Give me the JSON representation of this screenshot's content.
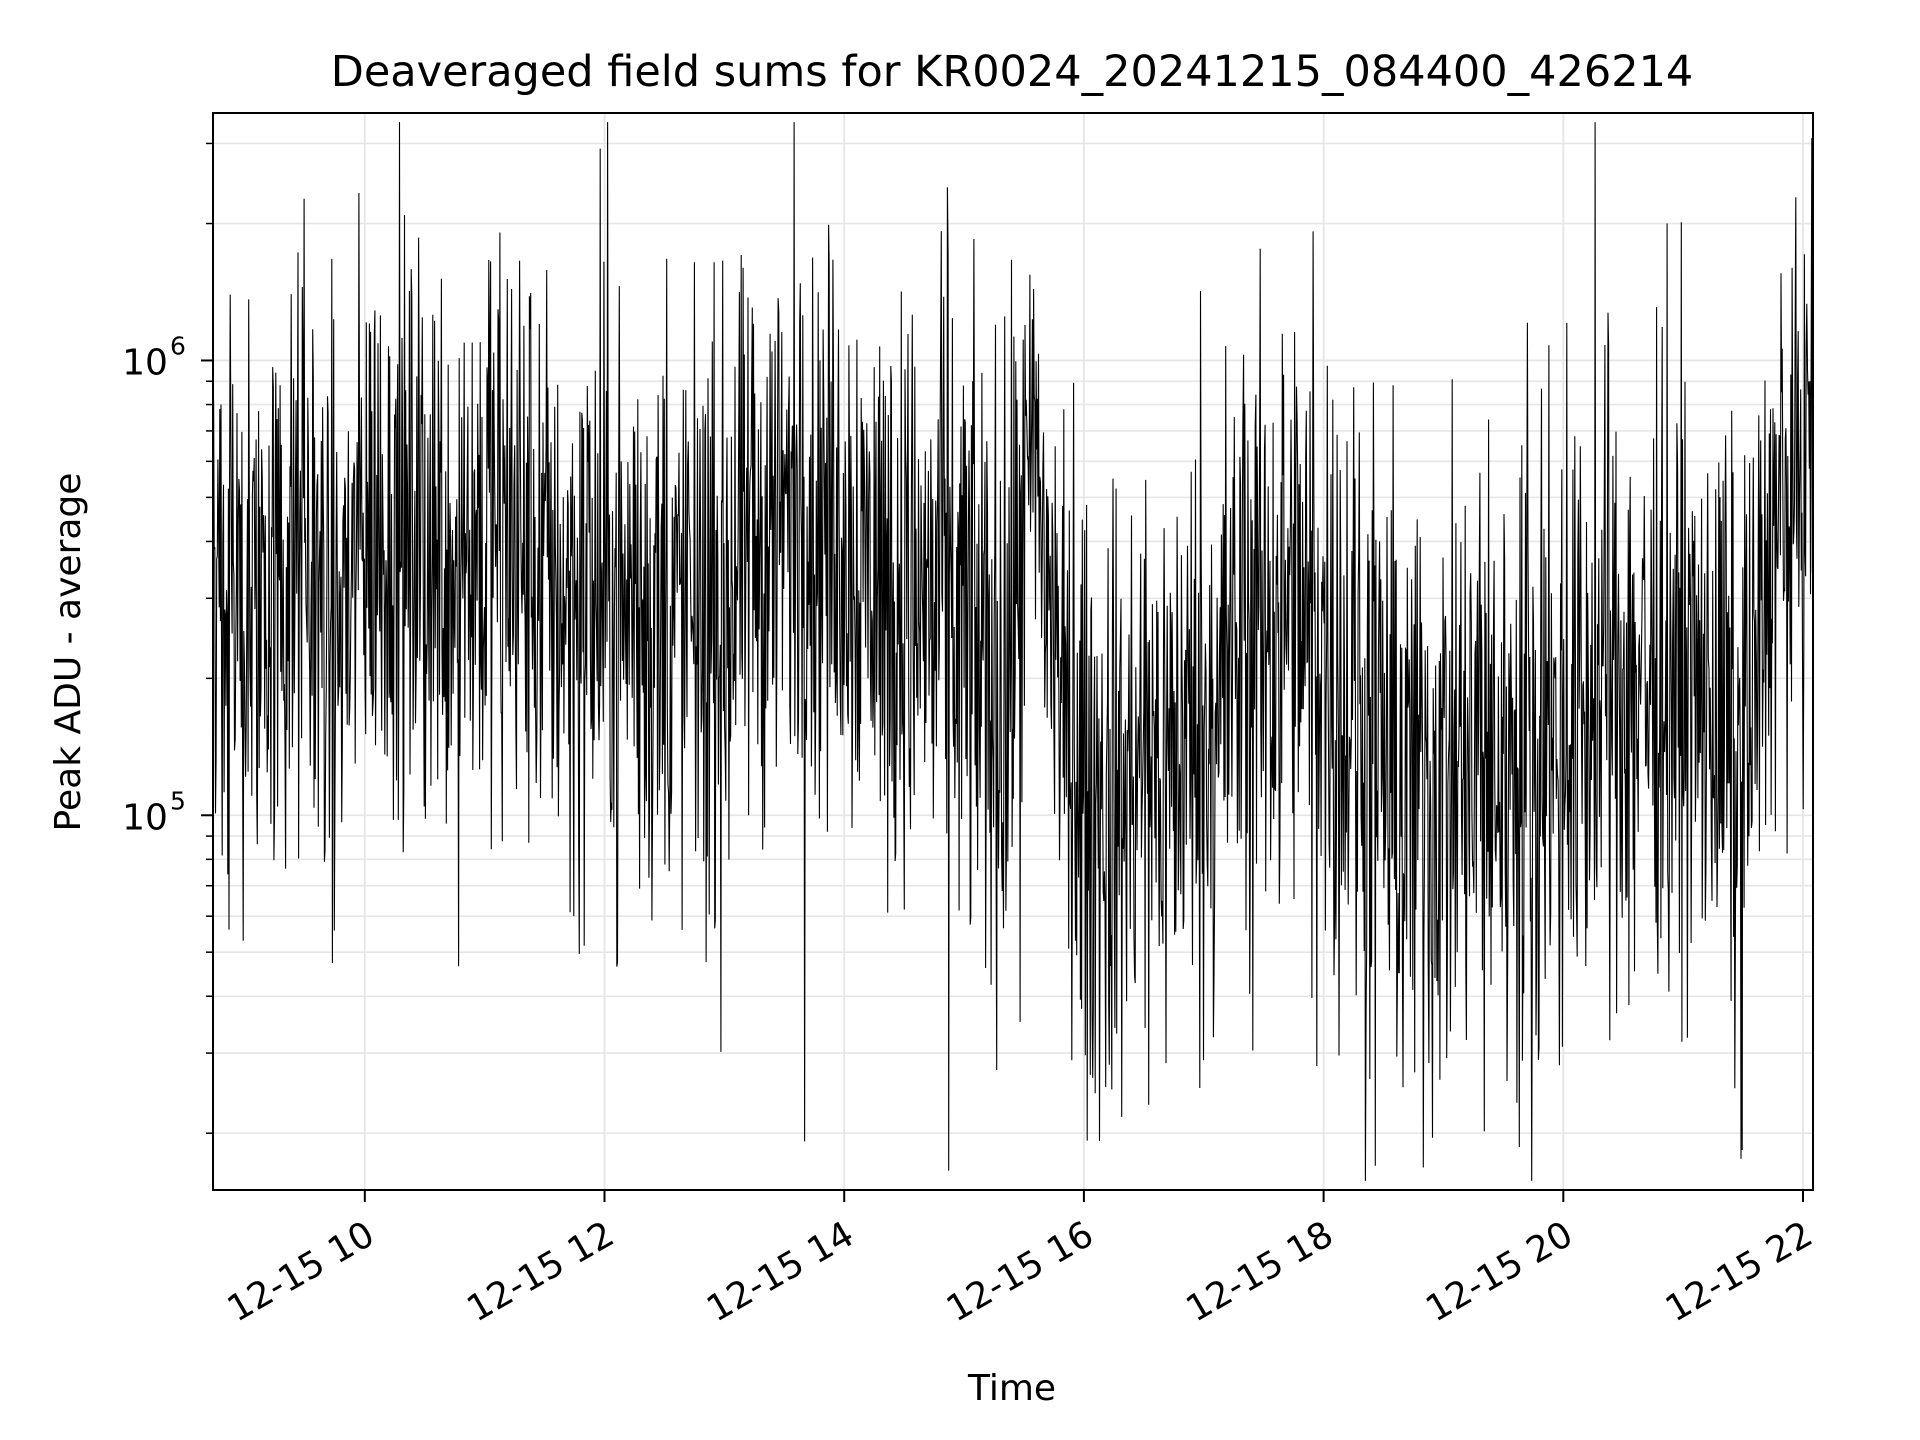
{
  "chart_data": {
    "type": "line",
    "title": "Deaveraged field sums for KR0024_20241215_084400_426214",
    "xlabel": "Time",
    "ylabel": "Peak ADU - average",
    "x_scale": "time",
    "y_scale": "log",
    "xlim": [
      "2024-12-15 08:44",
      "2024-12-15 22:05"
    ],
    "ylim": [
      15000,
      3500000
    ],
    "grid": true,
    "legend": "none",
    "line_color": "#000000",
    "grid_color": "#e6e6e6",
    "x_ticks": [
      {
        "label": "12-15 10",
        "value": "2024-12-15 10:00"
      },
      {
        "label": "12-15 12",
        "value": "2024-12-15 12:00"
      },
      {
        "label": "12-15 14",
        "value": "2024-12-15 14:00"
      },
      {
        "label": "12-15 16",
        "value": "2024-12-15 16:00"
      },
      {
        "label": "12-15 18",
        "value": "2024-12-15 18:00"
      },
      {
        "label": "12-15 20",
        "value": "2024-12-15 20:00"
      },
      {
        "label": "12-15 22",
        "value": "2024-12-15 22:00"
      }
    ],
    "y_ticks": [
      {
        "label": "10",
        "exponent": "5",
        "value": 100000
      },
      {
        "label": "10",
        "exponent": "6",
        "value": 1000000
      }
    ],
    "series": [
      {
        "x": [
          "2024-12-15 08:44",
          "2024-12-15 09:00",
          "2024-12-15 09:15",
          "2024-12-15 09:30",
          "2024-12-15 09:45",
          "2024-12-15 10:00",
          "2024-12-15 10:30",
          "2024-12-15 11:00",
          "2024-12-15 11:30",
          "2024-12-15 12:00",
          "2024-12-15 12:30",
          "2024-12-15 13:00",
          "2024-12-15 13:30",
          "2024-12-15 14:00",
          "2024-12-15 14:30",
          "2024-12-15 15:00",
          "2024-12-15 15:20",
          "2024-12-15 15:35",
          "2024-12-15 15:50",
          "2024-12-15 16:05",
          "2024-12-15 16:30",
          "2024-12-15 17:00",
          "2024-12-15 17:30",
          "2024-12-15 18:00",
          "2024-12-15 18:30",
          "2024-12-15 19:00",
          "2024-12-15 19:30",
          "2024-12-15 20:00",
          "2024-12-15 20:30",
          "2024-12-15 21:00",
          "2024-12-15 21:30",
          "2024-12-15 21:45",
          "2024-12-15 22:05"
        ],
        "values": [
          300000,
          330000,
          300000,
          380000,
          250000,
          430000,
          380000,
          420000,
          330000,
          300000,
          270000,
          290000,
          470000,
          420000,
          300000,
          260000,
          180000,
          600000,
          170000,
          95000,
          120000,
          160000,
          280000,
          240000,
          115000,
          110000,
          130000,
          150000,
          210000,
          190000,
          140000,
          420000,
          620000
        ],
        "spread": [
          2.2,
          2.3,
          2.2,
          2.3,
          2.2,
          2.2,
          2.3,
          2.3,
          2.2,
          2.2,
          2.2,
          2.3,
          2.2,
          2.2,
          2.3,
          2.4,
          2.6,
          1.9,
          2.0,
          2.4,
          2.3,
          2.2,
          2.4,
          2.4,
          2.5,
          2.5,
          2.4,
          2.3,
          2.3,
          2.2,
          2.3,
          1.9,
          1.9
        ]
      }
    ]
  }
}
